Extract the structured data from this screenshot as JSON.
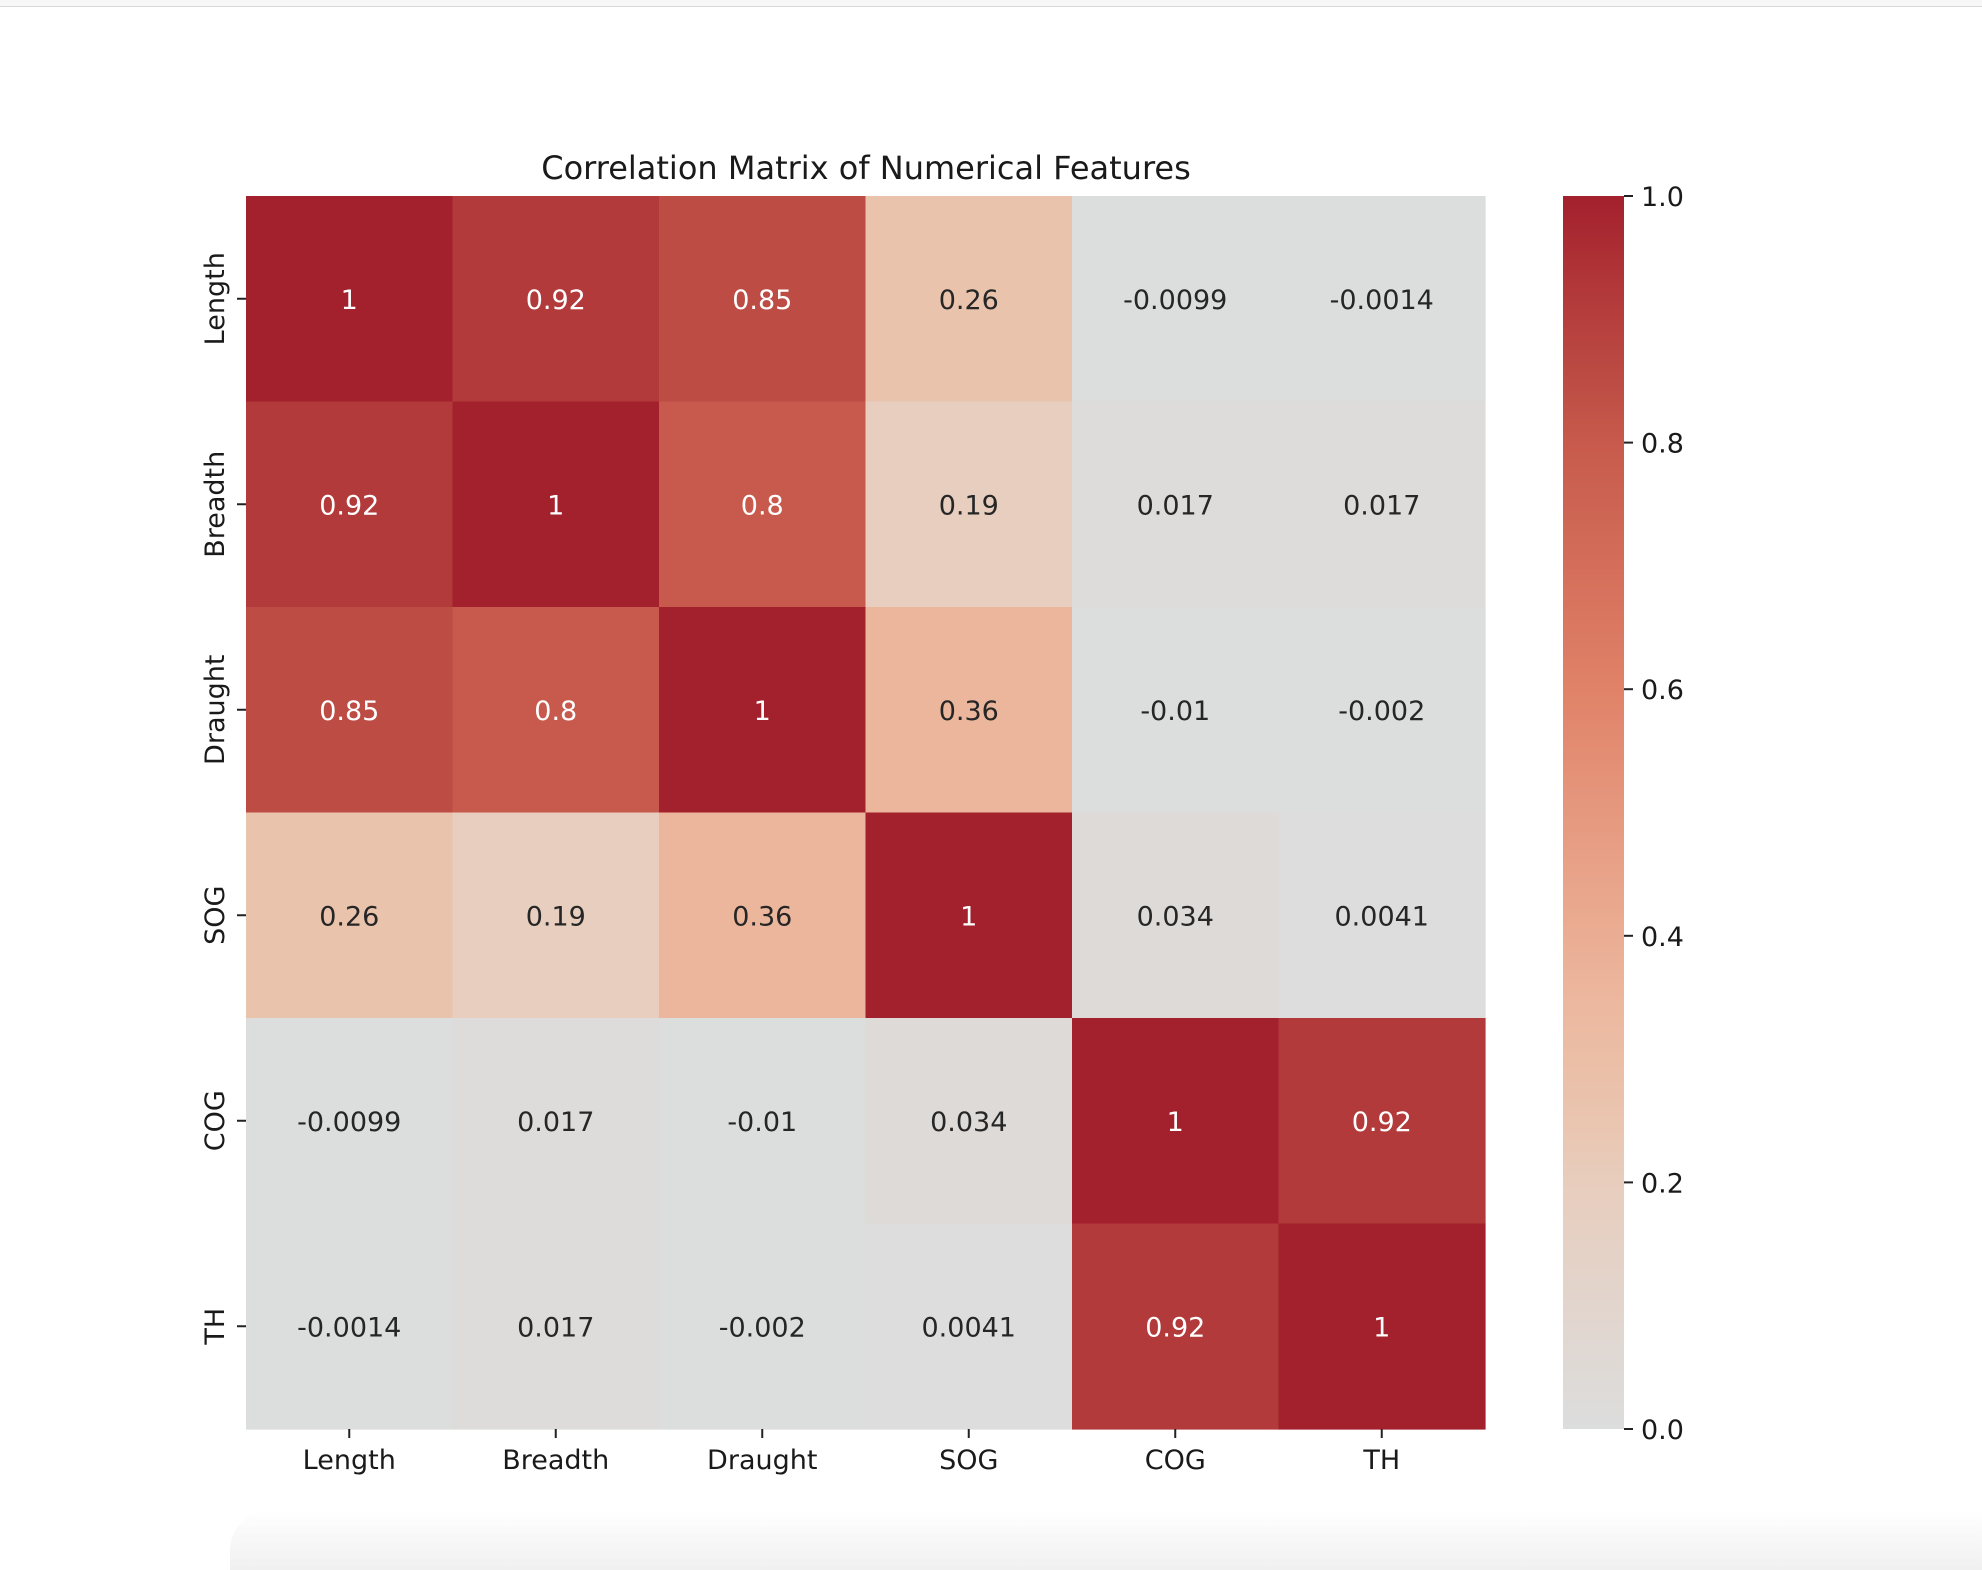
{
  "chart_data": {
    "type": "heatmap",
    "title": "Correlation Matrix of Numerical Features",
    "xlabel": "",
    "ylabel": "",
    "x_categories": [
      "Length",
      "Breadth",
      "Draught",
      "SOG",
      "COG",
      "TH"
    ],
    "y_categories": [
      "Length",
      "Breadth",
      "Draught",
      "SOG",
      "COG",
      "TH"
    ],
    "values": [
      [
        1,
        0.92,
        0.85,
        0.26,
        -0.0099,
        -0.0014
      ],
      [
        0.92,
        1,
        0.8,
        0.19,
        0.017,
        0.017
      ],
      [
        0.85,
        0.8,
        1,
        0.36,
        -0.01,
        -0.002
      ],
      [
        0.26,
        0.19,
        0.36,
        1,
        0.034,
        0.0041
      ],
      [
        -0.0099,
        0.017,
        -0.01,
        0.034,
        1,
        0.92
      ],
      [
        -0.0014,
        0.017,
        -0.002,
        0.0041,
        0.92,
        1
      ]
    ],
    "annotations": [
      [
        "1",
        "0.92",
        "0.85",
        "0.26",
        "-0.0099",
        "-0.0014"
      ],
      [
        "0.92",
        "1",
        "0.8",
        "0.19",
        "0.017",
        "0.017"
      ],
      [
        "0.85",
        "0.8",
        "1",
        "0.36",
        "-0.01",
        "-0.002"
      ],
      [
        "0.26",
        "0.19",
        "0.36",
        "1",
        "0.034",
        "0.0041"
      ],
      [
        "-0.0099",
        "0.017",
        "-0.01",
        "0.034",
        "1",
        "0.92"
      ],
      [
        "-0.0014",
        "0.017",
        "-0.002",
        "0.0041",
        "0.92",
        "1"
      ]
    ],
    "colorbar": {
      "range": [
        0.0,
        1.0
      ],
      "ticks": [
        "0.0",
        "0.2",
        "0.4",
        "0.6",
        "0.8",
        "1.0"
      ],
      "tick_values": [
        0.0,
        0.2,
        0.4,
        0.6,
        0.8,
        1.0
      ],
      "colormap": "coolwarm"
    },
    "colors": {
      "low": "#dcdddd",
      "high": "#a3202d",
      "text_dark": "#262626",
      "text_light": "#ffffff"
    }
  }
}
